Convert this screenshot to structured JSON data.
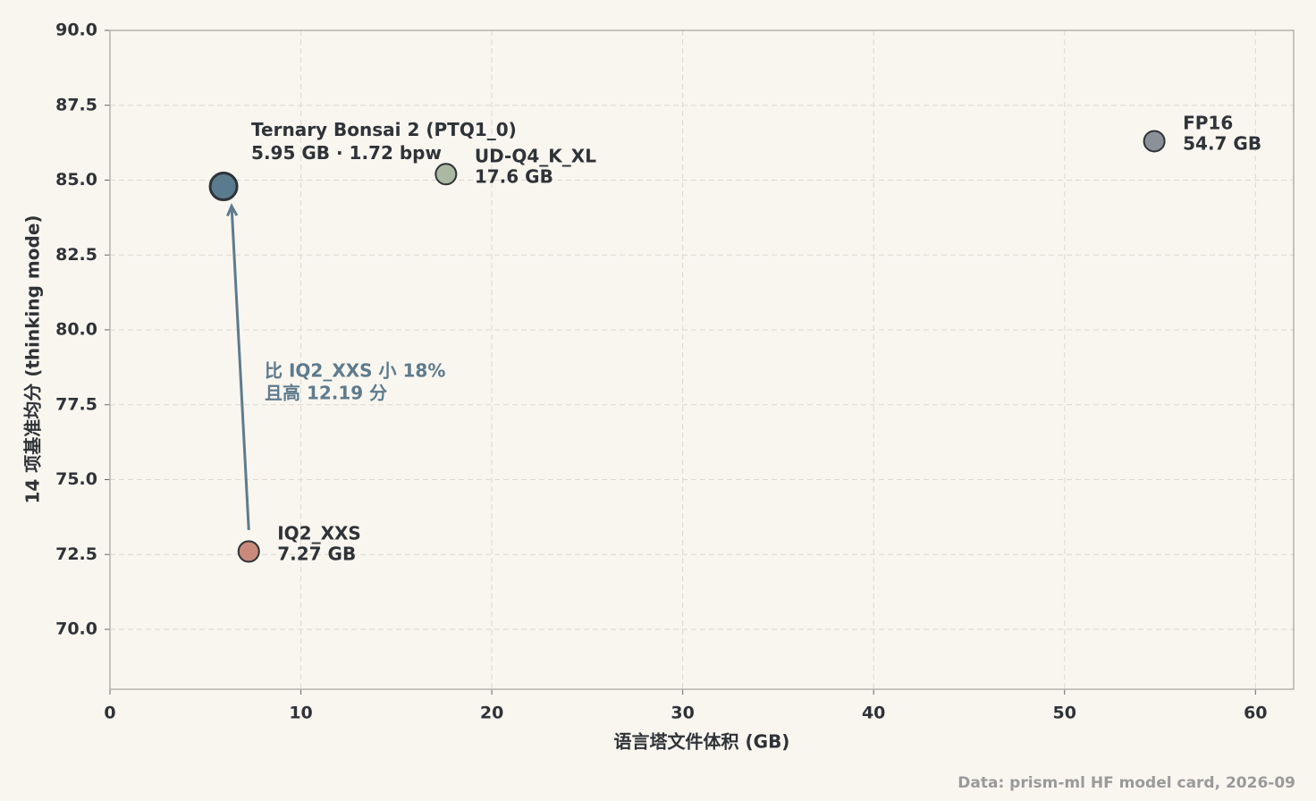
{
  "chart_data": {
    "type": "scatter",
    "x_label": "语言塔文件体积 (GB)",
    "y_label": "14 项基准均分 (thinking mode)",
    "points": [
      {
        "label": "Ternary Bonsai 2 (PTQ1_0)",
        "detail": "5.95 GB · 1.72 bpw",
        "x": 5.95,
        "y": 84.79,
        "color": "#5a7b8e"
      },
      {
        "label": "UD-Q4_K_XL",
        "detail": "17.6 GB",
        "x": 17.6,
        "y": 85.2,
        "color": "#aab9a2"
      },
      {
        "label": "FP16",
        "detail": "54.7 GB",
        "x": 54.7,
        "y": 86.3,
        "color": "#8b9099"
      },
      {
        "label": "IQ2_XXS",
        "detail": "7.27 GB",
        "x": 7.27,
        "y": 72.6,
        "color": "#c98a7c"
      }
    ],
    "annotation": [
      "比 IQ2_XXS 小 18%",
      "且高 12.19 分"
    ],
    "annotation_color": "#5e7b8c",
    "source": "Data: prism-ml HF model card, 2026-09",
    "xlim": [
      0,
      62
    ],
    "ylim": [
      68,
      90
    ],
    "xticks": [
      0,
      10,
      20,
      30,
      40,
      50,
      60
    ],
    "yticks": [
      {
        "value": 70,
        "label": "70.0"
      },
      72.5,
      {
        "value": 75,
        "label": "75.0"
      },
      77.5,
      {
        "value": 80,
        "label": "80.0"
      },
      82.5,
      {
        "value": 85,
        "label": "85.0"
      },
      87.5,
      {
        "value": 90,
        "label": "90.0"
      }
    ],
    "grid": true
  }
}
